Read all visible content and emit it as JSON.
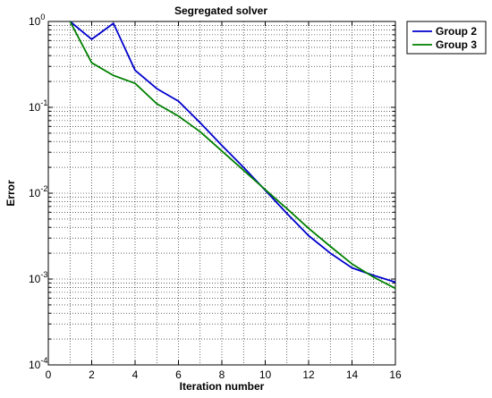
{
  "chart_data": {
    "type": "line",
    "title": "Segregated solver",
    "xlabel": "Iteration number",
    "ylabel": "Error",
    "xlim": [
      0,
      16
    ],
    "ylim": [
      0.0001,
      1
    ],
    "yscale": "log",
    "grid": true,
    "legend_position": "outside-top-right",
    "x_ticks": [
      "0",
      "2",
      "4",
      "6",
      "8",
      "10",
      "12",
      "14",
      "16"
    ],
    "y_ticks": [
      {
        "value": 1,
        "base": "10",
        "exp": "0"
      },
      {
        "value": 0.1,
        "base": "10",
        "exp": "-1"
      },
      {
        "value": 0.01,
        "base": "10",
        "exp": "-2"
      },
      {
        "value": 0.001,
        "base": "10",
        "exp": "-3"
      },
      {
        "value": 0.0001,
        "base": "10",
        "exp": "-4"
      }
    ],
    "series": [
      {
        "name": "Group 2",
        "color": "#0000cc",
        "x": [
          1,
          2,
          3,
          4,
          5,
          6,
          7,
          8,
          9,
          10,
          11,
          12,
          13,
          14,
          15,
          16
        ],
        "values": [
          1.0,
          0.62,
          0.95,
          0.27,
          0.165,
          0.118,
          0.066,
          0.036,
          0.02,
          0.0108,
          0.0058,
          0.0032,
          0.002,
          0.00135,
          0.0011,
          0.00092
        ]
      },
      {
        "name": "Group 3",
        "color": "#008000",
        "x": [
          1,
          2,
          3,
          4,
          5,
          6,
          7,
          8,
          9,
          10,
          11,
          12,
          13,
          14,
          15,
          16
        ],
        "values": [
          1.0,
          0.33,
          0.235,
          0.19,
          0.11,
          0.079,
          0.052,
          0.031,
          0.0185,
          0.011,
          0.0066,
          0.0039,
          0.0024,
          0.0015,
          0.00105,
          0.00078
        ]
      }
    ]
  }
}
